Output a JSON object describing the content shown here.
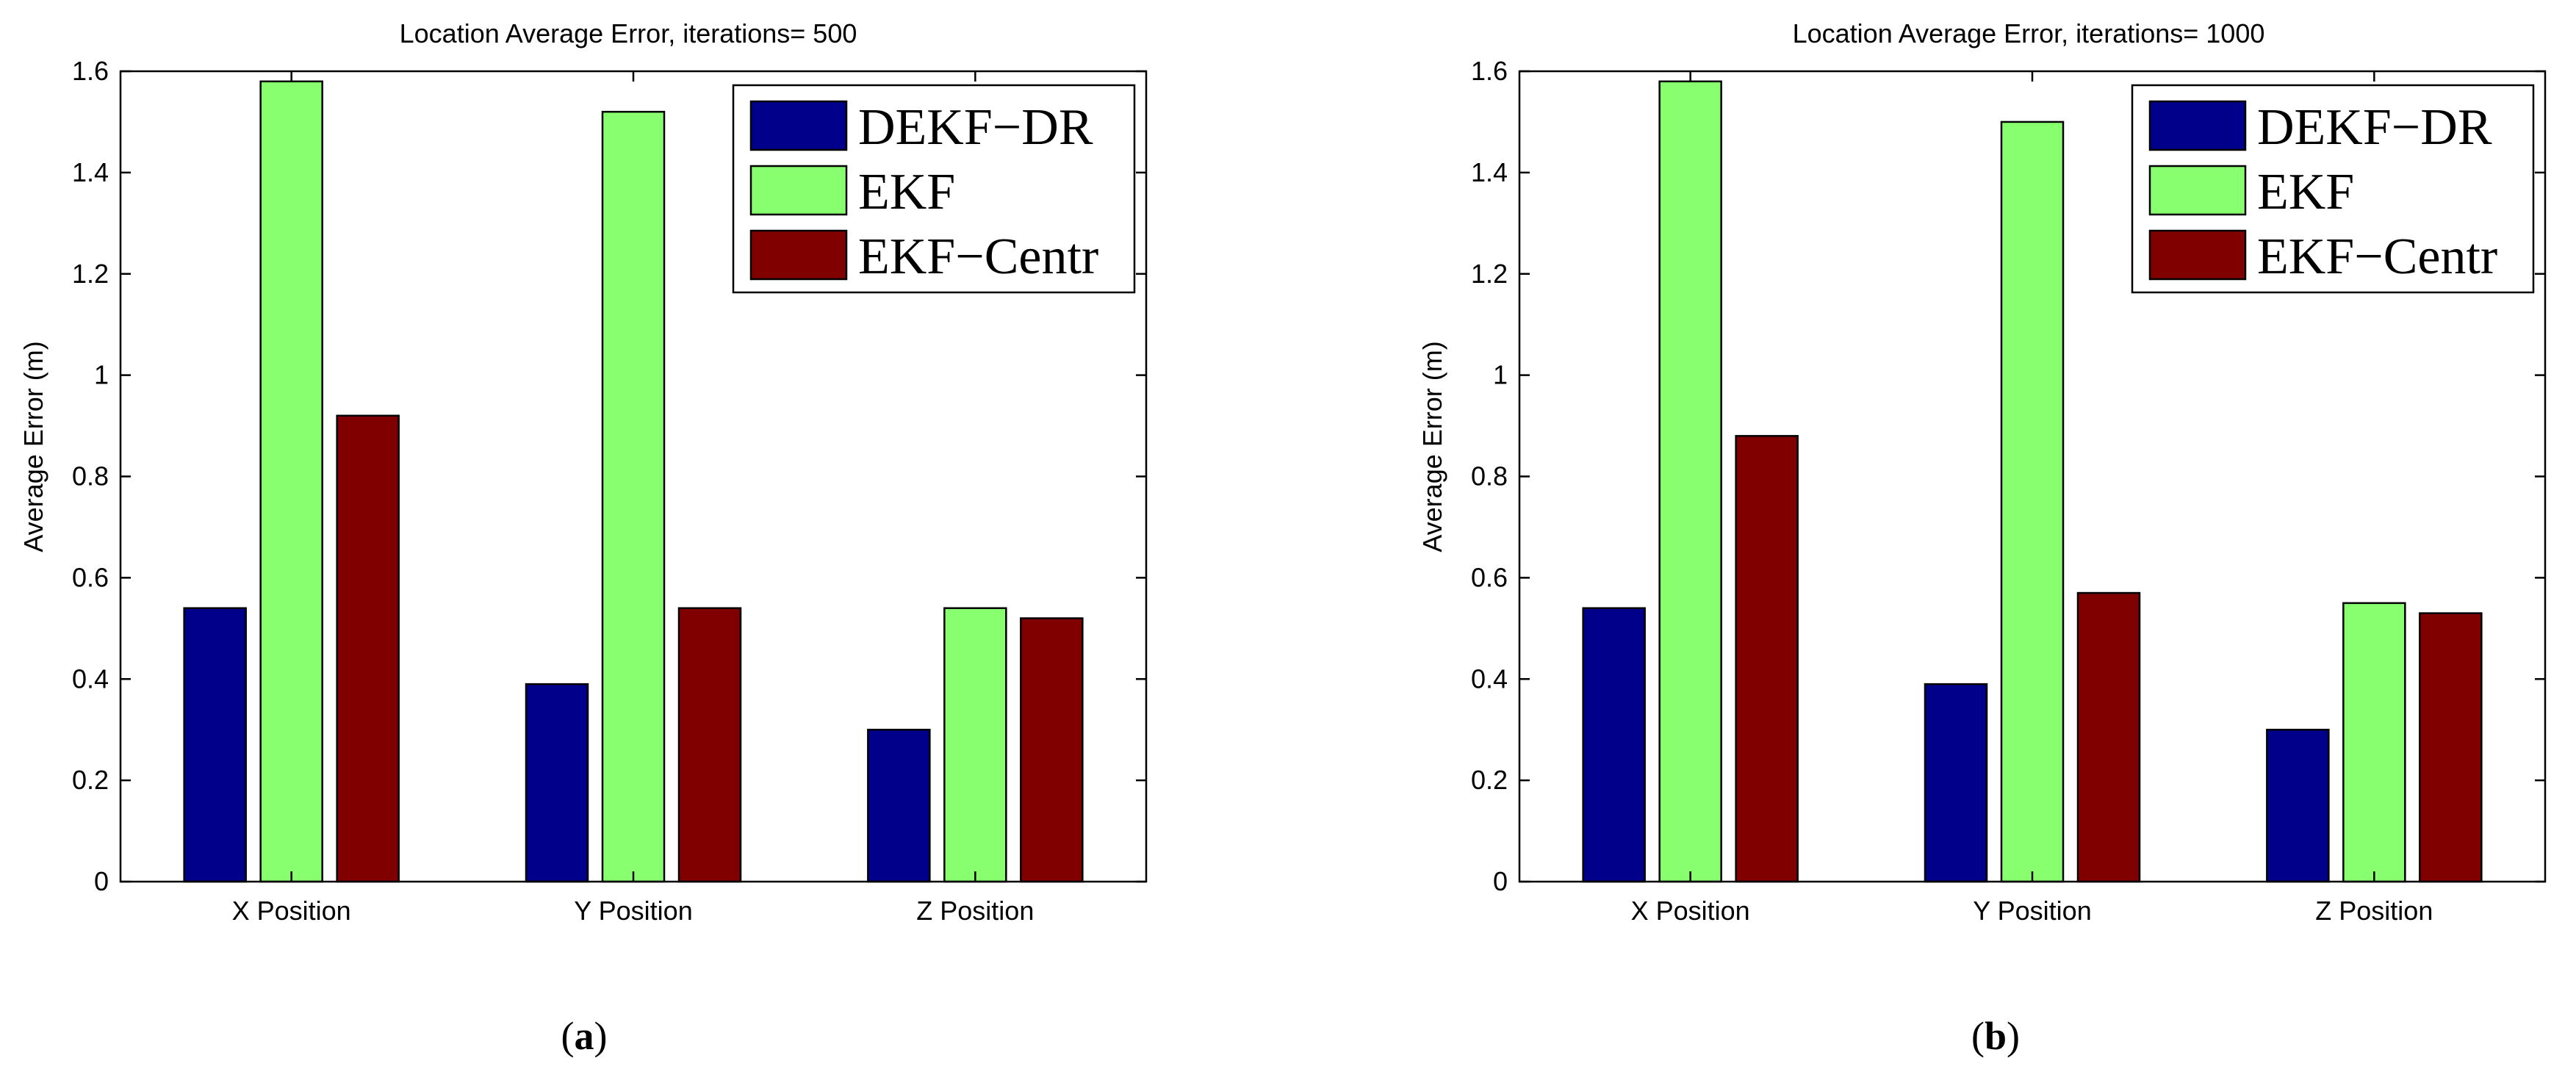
{
  "colors": {
    "DEKF-DR": "#00008b",
    "EKF": "#88ff6e",
    "EKF-Centr": "#800000"
  },
  "chart_data": [
    {
      "type": "bar",
      "title": "Location Average Error,  iterations= 500",
      "xlabel": "",
      "ylabel": "Average Error (m)",
      "categories": [
        "X Position",
        "Y Position",
        "Z Position"
      ],
      "ylim": [
        0,
        1.6
      ],
      "yticks": [
        "0",
        "0.2",
        "0.4",
        "0.6",
        "0.8",
        "1",
        "1.2",
        "1.4",
        "1.6"
      ],
      "legend_position": "top-right",
      "series": [
        {
          "name": "DEKF−DR",
          "values": [
            0.54,
            0.39,
            0.3
          ]
        },
        {
          "name": "EKF",
          "values": [
            1.58,
            1.52,
            0.54
          ]
        },
        {
          "name": "EKF−Centr",
          "values": [
            0.92,
            0.54,
            0.52
          ]
        }
      ],
      "caption": {
        "open": "(",
        "letter": "a",
        "close": ")"
      }
    },
    {
      "type": "bar",
      "title": "Location Average Error,  iterations= 1000",
      "xlabel": "",
      "ylabel": "Average Error (m)",
      "categories": [
        "X Position",
        "Y Position",
        "Z Position"
      ],
      "ylim": [
        0,
        1.6
      ],
      "yticks": [
        "0",
        "0.2",
        "0.4",
        "0.6",
        "0.8",
        "1",
        "1.2",
        "1.4",
        "1.6"
      ],
      "legend_position": "top-right",
      "series": [
        {
          "name": "DEKF−DR",
          "values": [
            0.54,
            0.39,
            0.3
          ]
        },
        {
          "name": "EKF",
          "values": [
            1.58,
            1.5,
            0.55
          ]
        },
        {
          "name": "EKF−Centr",
          "values": [
            0.88,
            0.57,
            0.53
          ]
        }
      ],
      "caption": {
        "open": "(",
        "letter": "b",
        "close": ")"
      }
    }
  ]
}
